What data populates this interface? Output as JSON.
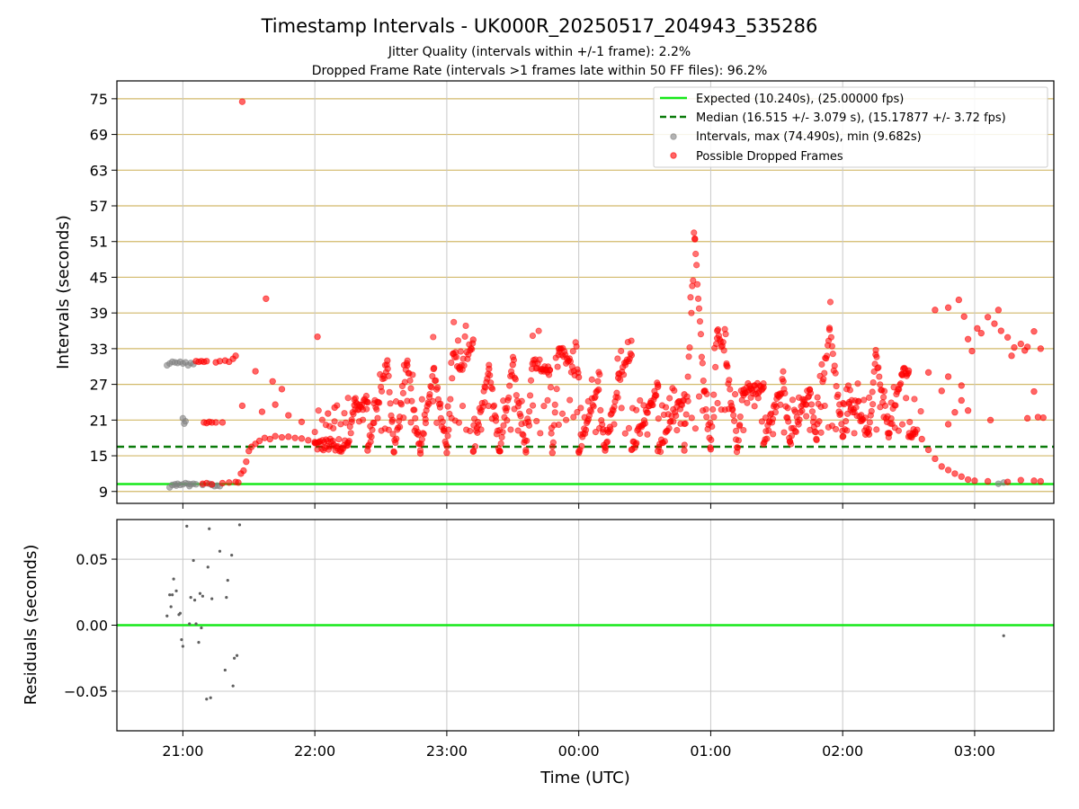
{
  "chart_data": [
    {
      "type": "scatter",
      "panel": "intervals",
      "title": "Timestamp Intervals - UK000R_20250517_204943_535286",
      "subtitle_lines": [
        "Jitter Quality (intervals within +/-1 frame): 2.2%",
        "Dropped Frame Rate (intervals >1 frames late within 50 FF files): 96.2%"
      ],
      "ylabel": "Intervals (seconds)",
      "ylim": [
        7,
        78
      ],
      "yticks": [
        9,
        15,
        21,
        27,
        33,
        39,
        45,
        51,
        57,
        63,
        69,
        75
      ],
      "ytick_labels": [
        "9",
        "15",
        "21",
        "27",
        "33",
        "39",
        "45",
        "51",
        "57",
        "63",
        "69",
        "75"
      ],
      "grid": true,
      "legend_position": "top-right",
      "reference_lines": [
        {
          "name": "Expected (10.240s), (25.00000 fps)",
          "y": 10.24,
          "color": "#17e81a",
          "style": "solid"
        },
        {
          "name": "Median (16.515 +/- 3.079 s), (15.17877 +/- 3.72 fps)",
          "y": 16.515,
          "color": "#0a7a0a",
          "style": "dashed"
        }
      ],
      "series": [
        {
          "name": "Intervals, max (74.490s), min (9.682s)",
          "color": "#808080",
          "points": [
            [
              20.88,
              30.2
            ],
            [
              20.9,
              30.5
            ],
            [
              20.92,
              30.8
            ],
            [
              20.94,
              30.7
            ],
            [
              20.96,
              30.6
            ],
            [
              20.98,
              30.8
            ],
            [
              21.0,
              30.5
            ],
            [
              21.02,
              30.7
            ],
            [
              21.04,
              30.2
            ],
            [
              21.06,
              30.6
            ],
            [
              21.08,
              30.4
            ],
            [
              21.0,
              21.3
            ],
            [
              21.01,
              20.4
            ],
            [
              21.02,
              20.8
            ],
            [
              20.9,
              9.7
            ],
            [
              20.92,
              10.1
            ],
            [
              20.94,
              10.2
            ],
            [
              20.96,
              10.3
            ],
            [
              20.98,
              10.1
            ],
            [
              21.0,
              10.2
            ],
            [
              21.02,
              10.4
            ],
            [
              21.04,
              10.3
            ],
            [
              21.06,
              10.2
            ],
            [
              21.08,
              10.3
            ],
            [
              21.1,
              10.2
            ],
            [
              21.2,
              10.3
            ],
            [
              21.22,
              10.1
            ],
            [
              21.24,
              9.9
            ],
            [
              21.26,
              10.0
            ],
            [
              21.28,
              9.9
            ],
            [
              20.95,
              10.0
            ],
            [
              21.05,
              9.9
            ],
            [
              21.15,
              10.1
            ],
            [
              27.18,
              10.3
            ],
            [
              27.22,
              10.5
            ]
          ]
        },
        {
          "name": "Possible Dropped Frames",
          "color": "#ff0000",
          "points": [
            [
              21.1,
              30.9
            ],
            [
              21.12,
              30.8
            ],
            [
              21.14,
              30.9
            ],
            [
              21.16,
              30.8
            ],
            [
              21.18,
              30.9
            ],
            [
              21.25,
              30.7
            ],
            [
              21.28,
              30.9
            ],
            [
              21.32,
              31.0
            ],
            [
              21.35,
              30.8
            ],
            [
              21.38,
              31.3
            ],
            [
              21.4,
              31.8
            ],
            [
              21.16,
              20.6
            ],
            [
              21.18,
              20.5
            ],
            [
              21.2,
              20.7
            ],
            [
              21.22,
              20.6
            ],
            [
              21.25,
              20.6
            ],
            [
              21.3,
              20.6
            ],
            [
              21.15,
              10.3
            ],
            [
              21.18,
              10.4
            ],
            [
              21.22,
              10.2
            ],
            [
              21.3,
              10.4
            ],
            [
              21.35,
              10.5
            ],
            [
              21.4,
              10.6
            ],
            [
              21.42,
              10.5
            ],
            [
              21.44,
              12.0
            ],
            [
              21.46,
              12.5
            ],
            [
              21.48,
              14.0
            ],
            [
              21.5,
              15.8
            ],
            [
              21.52,
              16.5
            ],
            [
              21.55,
              17.0
            ],
            [
              21.58,
              17.5
            ],
            [
              21.62,
              18.0
            ],
            [
              21.66,
              17.8
            ],
            [
              21.7,
              18.3
            ],
            [
              21.75,
              18.1
            ],
            [
              21.8,
              18.2
            ],
            [
              21.85,
              18.0
            ],
            [
              21.9,
              17.9
            ],
            [
              21.95,
              17.6
            ],
            [
              22.0,
              17.3
            ],
            [
              21.45,
              74.5
            ],
            [
              21.63,
              41.4
            ],
            [
              21.55,
              29.2
            ],
            [
              21.68,
              27.5
            ],
            [
              21.75,
              26.2
            ],
            [
              21.45,
              23.4
            ],
            [
              21.6,
              22.4
            ],
            [
              21.7,
              23.6
            ],
            [
              21.8,
              21.8
            ],
            [
              21.9,
              20.7
            ],
            [
              22.02,
              35.0
            ],
            [
              22.1,
              22.1
            ],
            [
              22.15,
              23.1
            ],
            [
              22.3,
              23.5
            ],
            [
              22.4,
              24.0
            ],
            [
              22.55,
              31.0
            ],
            [
              22.7,
              30.2
            ],
            [
              22.9,
              29.6
            ],
            [
              23.05,
              32.2
            ],
            [
              23.1,
              29.5
            ],
            [
              23.2,
              34.5
            ],
            [
              23.32,
              29.6
            ],
            [
              23.5,
              30.3
            ],
            [
              23.65,
              30.5
            ],
            [
              23.78,
              29.4
            ],
            [
              23.85,
              33.0
            ],
            [
              24.0,
              28.2
            ],
            [
              24.15,
              26.1
            ],
            [
              24.3,
              28.1
            ],
            [
              24.4,
              31.9
            ],
            [
              24.6,
              26.6
            ],
            [
              24.8,
              25.3
            ],
            [
              24.88,
              51.4
            ],
            [
              24.95,
              25.8
            ],
            [
              25.05,
              36.0
            ],
            [
              25.12,
              30.2
            ],
            [
              25.25,
              26.1
            ],
            [
              25.4,
              26.5
            ],
            [
              25.55,
              27.5
            ],
            [
              25.75,
              26.1
            ],
            [
              25.9,
              36.2
            ],
            [
              26.05,
              24.0
            ],
            [
              26.25,
              32.0
            ],
            [
              26.45,
              28.7
            ],
            [
              26.5,
              29.3
            ],
            [
              26.65,
              29.0
            ],
            [
              26.8,
              28.3
            ],
            [
              26.9,
              26.8
            ],
            [
              26.7,
              39.5
            ],
            [
              26.8,
              39.9
            ],
            [
              26.88,
              41.2
            ],
            [
              26.92,
              38.4
            ],
            [
              27.02,
              36.4
            ],
            [
              27.1,
              38.3
            ],
            [
              27.18,
              39.5
            ],
            [
              27.2,
              36.0
            ],
            [
              27.25,
              34.9
            ],
            [
              27.3,
              33.2
            ],
            [
              27.35,
              33.8
            ],
            [
              27.4,
              33.3
            ],
            [
              27.45,
              35.9
            ],
            [
              27.5,
              33.0
            ],
            [
              27.05,
              35.6
            ],
            [
              27.15,
              37.2
            ],
            [
              26.95,
              34.6
            ],
            [
              26.98,
              32.6
            ],
            [
              27.28,
              31.8
            ],
            [
              27.38,
              32.7
            ],
            [
              27.12,
              21.0
            ],
            [
              27.48,
              21.5
            ],
            [
              27.45,
              25.8
            ],
            [
              27.4,
              21.3
            ],
            [
              27.52,
              21.4
            ],
            [
              26.55,
              19.0
            ],
            [
              26.6,
              17.8
            ],
            [
              26.65,
              16.0
            ],
            [
              26.7,
              14.5
            ],
            [
              26.75,
              13.2
            ],
            [
              26.8,
              12.6
            ],
            [
              26.85,
              12.0
            ],
            [
              26.9,
              11.5
            ],
            [
              26.95,
              11.0
            ],
            [
              27.0,
              10.8
            ],
            [
              27.1,
              10.7
            ],
            [
              27.25,
              10.6
            ],
            [
              27.35,
              10.9
            ],
            [
              27.45,
              10.8
            ],
            [
              27.5,
              10.7
            ],
            [
              26.85,
              22.3
            ],
            [
              26.75,
              25.9
            ],
            [
              26.9,
              24.3
            ],
            [
              26.8,
              20.3
            ],
            [
              26.95,
              22.6
            ],
            [
              22.25,
              16.8
            ],
            [
              22.4,
              15.9
            ],
            [
              22.6,
              15.6
            ],
            [
              22.8,
              15.4
            ],
            [
              23.0,
              15.5
            ],
            [
              23.2,
              15.7
            ],
            [
              23.4,
              15.8
            ],
            [
              23.6,
              15.6
            ],
            [
              23.8,
              15.5
            ],
            [
              24.0,
              15.7
            ],
            [
              24.2,
              15.9
            ],
            [
              24.4,
              16.0
            ],
            [
              24.6,
              15.8
            ],
            [
              24.8,
              15.9
            ],
            [
              25.0,
              16.1
            ],
            [
              25.2,
              16.4
            ],
            [
              25.4,
              17.0
            ],
            [
              25.6,
              17.4
            ],
            [
              25.8,
              17.8
            ],
            [
              26.0,
              18.2
            ],
            [
              26.2,
              18.6
            ],
            [
              26.35,
              18.8
            ],
            [
              26.5,
              18.2
            ]
          ]
        }
      ]
    },
    {
      "type": "scatter",
      "panel": "residuals",
      "xlabel": "Time (UTC)",
      "ylabel": "Residuals (seconds)",
      "ylim": [
        -0.08,
        0.08
      ],
      "yticks": [
        -0.05,
        0.0,
        0.05
      ],
      "ytick_labels": [
        "−0.05",
        "0.00",
        "0.05"
      ],
      "xlim": [
        20.5,
        27.6
      ],
      "xticks": [
        21,
        22,
        23,
        24,
        25,
        26,
        27
      ],
      "xtick_labels": [
        "21:00",
        "22:00",
        "23:00",
        "00:00",
        "01:00",
        "02:00",
        "03:00"
      ],
      "grid": true,
      "reference_line": {
        "y": 0.0,
        "color": "#17e81a"
      },
      "series": [
        {
          "name": "residuals",
          "color": "#606060",
          "points": [
            [
              20.88,
              0.007
            ],
            [
              20.9,
              0.023
            ],
            [
              20.91,
              0.014
            ],
            [
              20.92,
              0.023
            ],
            [
              20.93,
              0.035
            ],
            [
              20.95,
              0.026
            ],
            [
              20.97,
              0.008
            ],
            [
              20.98,
              0.009
            ],
            [
              20.99,
              -0.011
            ],
            [
              21.0,
              -0.016
            ],
            [
              21.03,
              0.075
            ],
            [
              21.05,
              0.001
            ],
            [
              21.06,
              0.021
            ],
            [
              21.08,
              0.049
            ],
            [
              21.09,
              0.019
            ],
            [
              21.1,
              0.001
            ],
            [
              21.12,
              -0.013
            ],
            [
              21.13,
              0.024
            ],
            [
              21.14,
              -0.002
            ],
            [
              21.15,
              0.022
            ],
            [
              21.18,
              -0.056
            ],
            [
              21.19,
              0.044
            ],
            [
              21.2,
              0.073
            ],
            [
              21.21,
              -0.055
            ],
            [
              21.22,
              0.02
            ],
            [
              21.28,
              0.056
            ],
            [
              21.32,
              -0.034
            ],
            [
              21.33,
              0.021
            ],
            [
              21.34,
              0.034
            ],
            [
              21.37,
              0.053
            ],
            [
              21.38,
              -0.046
            ],
            [
              21.39,
              -0.025
            ],
            [
              21.41,
              -0.023
            ],
            [
              21.43,
              0.076
            ],
            [
              27.22,
              -0.008
            ]
          ]
        }
      ]
    }
  ]
}
